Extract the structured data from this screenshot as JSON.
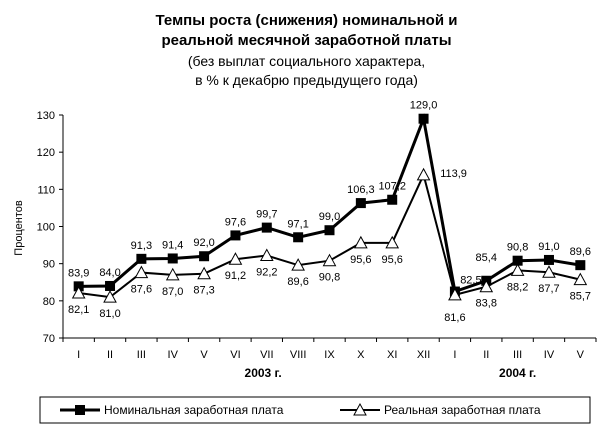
{
  "chart_data": {
    "type": "line",
    "title": [
      "Темпы роста (снижения) номинальной и",
      "реальной месячной заработной платы"
    ],
    "subtitle": [
      "(без выплат социального характера,",
      "в % к декабрю предыдущего года)"
    ],
    "ylabel": "Процентов",
    "ylim": [
      70,
      130
    ],
    "yticks": [
      70,
      80,
      90,
      100,
      110,
      120,
      130
    ],
    "categories": [
      "I",
      "II",
      "III",
      "IV",
      "V",
      "VI",
      "VII",
      "VIII",
      "IX",
      "X",
      "XI",
      "XII",
      "I",
      "II",
      "III",
      "IV",
      "V"
    ],
    "year_labels": [
      "2003 г.",
      "2004 г."
    ],
    "grid": false,
    "legend_position": "bottom",
    "series": [
      {
        "name": "Номинальная заработная плата",
        "marker": "filled-square",
        "color": "#000000",
        "values": [
          83.9,
          84.0,
          91.3,
          91.4,
          92.0,
          97.6,
          99.7,
          97.1,
          99.0,
          106.3,
          107.2,
          129.0,
          82.5,
          85.4,
          90.8,
          91.0,
          89.6
        ],
        "labels": [
          "83,9",
          "84,0",
          "91,3",
          "91,4",
          "92,0",
          "97,6",
          "99,7",
          "97,1",
          "99,0",
          "106,3",
          "107,2",
          "129,0",
          "82,5",
          "85,4",
          "90,8",
          "91,0",
          "89,6"
        ]
      },
      {
        "name": "Реальная заработная плата",
        "marker": "open-triangle",
        "color": "#000000",
        "values": [
          82.1,
          81.0,
          87.6,
          87.0,
          87.3,
          91.2,
          92.2,
          89.6,
          90.8,
          95.6,
          95.6,
          113.9,
          81.6,
          83.8,
          88.2,
          87.7,
          85.7
        ],
        "labels": [
          "82,1",
          "81,0",
          "87,6",
          "87,0",
          "87,3",
          "91,2",
          "92,2",
          "89,6",
          "90,8",
          "95,6",
          "95,6",
          "113,9",
          "81,6",
          "83,8",
          "88,2",
          "87,7",
          "85,7"
        ]
      }
    ]
  }
}
